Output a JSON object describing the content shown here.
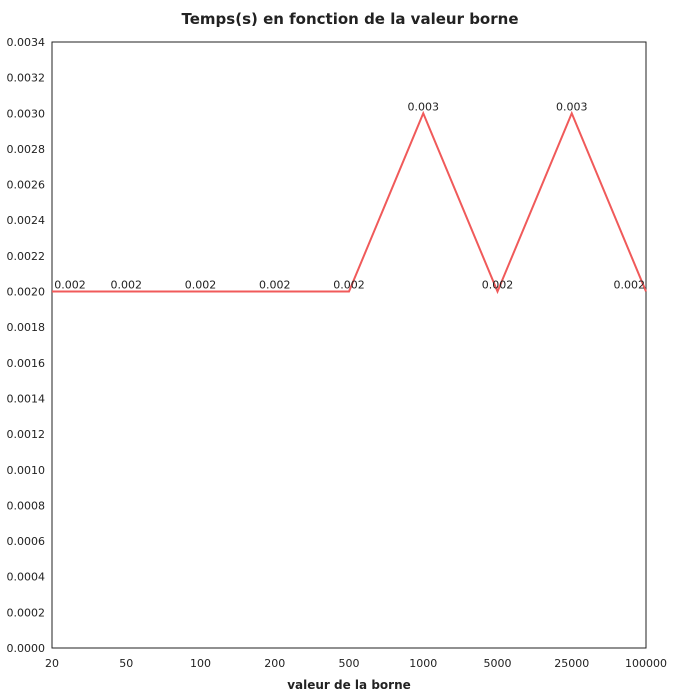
{
  "chart_data": {
    "type": "line",
    "title": "Temps(s) en fonction de la valeur borne",
    "xlabel": "valeur de la borne",
    "ylabel": "",
    "categories": [
      "20",
      "50",
      "100",
      "200",
      "500",
      "1000",
      "5000",
      "25000",
      "100000"
    ],
    "series": [
      {
        "values": [
          0.002,
          0.002,
          0.002,
          0.002,
          0.002,
          0.003,
          0.002,
          0.003,
          0.002
        ],
        "data_labels": [
          "0.002",
          "0.002",
          "0.002",
          "0.002",
          "0.002",
          "0.003",
          "0.002",
          "0.003",
          "0.002"
        ],
        "color": "#f05a5a"
      }
    ],
    "ylim": [
      0,
      0.0034
    ],
    "yticks": [
      "0.0000",
      "0.0002",
      "0.0004",
      "0.0006",
      "0.0008",
      "0.0010",
      "0.0012",
      "0.0014",
      "0.0016",
      "0.0018",
      "0.0020",
      "0.0022",
      "0.0024",
      "0.0026",
      "0.0028",
      "0.0030",
      "0.0032",
      "0.0034"
    ],
    "grid": false,
    "legend": "none"
  }
}
